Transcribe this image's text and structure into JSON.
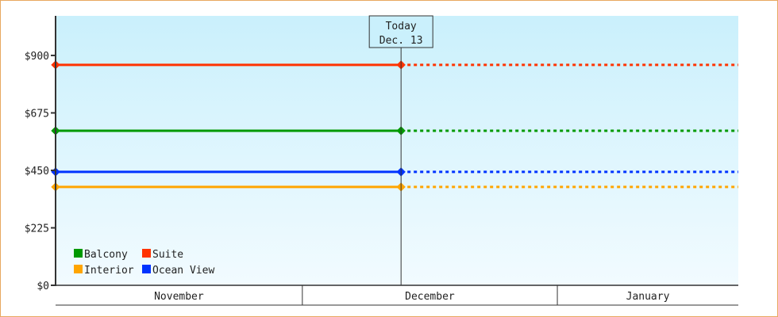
{
  "chart_data": {
    "type": "line",
    "x_start": "2023-11-01",
    "x_end": "2024-01-23",
    "month_labels": [
      "November",
      "December",
      "January"
    ],
    "today_marker": {
      "line1": "Today",
      "line2": "Dec. 13",
      "date": "2023-12-13"
    },
    "y_ticks": [
      "$0",
      "$225",
      "$450",
      "$675",
      "$900"
    ],
    "y_tick_values": [
      0,
      225,
      450,
      675,
      900
    ],
    "ylim": [
      0,
      1055
    ],
    "grid": false,
    "legend_position": "bottom-left",
    "series": [
      {
        "name": "Balcony",
        "color": "#009900",
        "value": 605,
        "points": [
          [
            "2023-11-01",
            605
          ],
          [
            "2023-12-13",
            605
          ]
        ],
        "projection": "dotted to end"
      },
      {
        "name": "Suite",
        "color": "#ff3300",
        "value": 863,
        "points": [
          [
            "2023-11-01",
            863
          ],
          [
            "2023-12-13",
            863
          ]
        ],
        "projection": "dotted to end"
      },
      {
        "name": "Interior",
        "color": "#ffa500",
        "value": 385,
        "points": [
          [
            "2023-11-01",
            385
          ],
          [
            "2023-12-13",
            385
          ]
        ],
        "projection": "dotted to end"
      },
      {
        "name": "Ocean View",
        "color": "#0033ff",
        "value": 444,
        "points": [
          [
            "2023-11-01",
            444
          ],
          [
            "2023-12-13",
            444
          ]
        ],
        "projection": "dotted to end"
      }
    ],
    "background_gradient": [
      "#caf0fc",
      "#f2fbff"
    ]
  }
}
